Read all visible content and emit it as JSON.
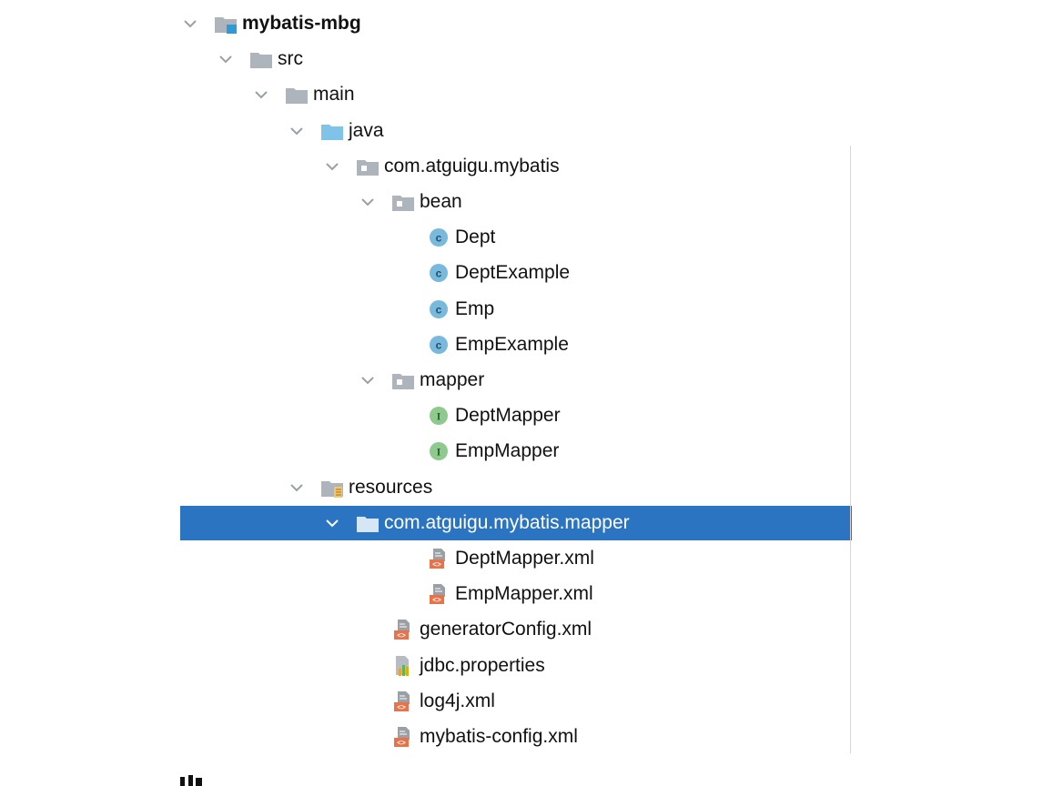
{
  "tree": [
    {
      "label": "mybatis-mbg",
      "icon": "module-folder-icon",
      "expanded": true,
      "depth": 0,
      "root": true
    },
    {
      "label": "src",
      "icon": "folder-icon",
      "expanded": true,
      "depth": 1
    },
    {
      "label": "main",
      "icon": "folder-icon",
      "expanded": true,
      "depth": 2
    },
    {
      "label": "java",
      "icon": "source-root-folder-icon",
      "expanded": true,
      "depth": 3
    },
    {
      "label": "com.atguigu.mybatis",
      "icon": "package-icon",
      "expanded": true,
      "depth": 4
    },
    {
      "label": "bean",
      "icon": "package-icon",
      "expanded": true,
      "depth": 5
    },
    {
      "label": "Dept",
      "icon": "class-icon",
      "depth": 6
    },
    {
      "label": "DeptExample",
      "icon": "class-icon",
      "depth": 6
    },
    {
      "label": "Emp",
      "icon": "class-icon",
      "depth": 6
    },
    {
      "label": "EmpExample",
      "icon": "class-icon",
      "depth": 6
    },
    {
      "label": "mapper",
      "icon": "package-icon",
      "expanded": true,
      "depth": 5
    },
    {
      "label": "DeptMapper",
      "icon": "interface-icon",
      "depth": 6
    },
    {
      "label": "EmpMapper",
      "icon": "interface-icon",
      "depth": 6
    },
    {
      "label": "resources",
      "icon": "resources-folder-icon",
      "expanded": true,
      "depth": 3
    },
    {
      "label": "com.atguigu.mybatis.mapper",
      "icon": "folder-icon",
      "expanded": true,
      "depth": 4,
      "selected": true
    },
    {
      "label": "DeptMapper.xml",
      "icon": "xml-file-icon",
      "depth": 6
    },
    {
      "label": "EmpMapper.xml",
      "icon": "xml-file-icon",
      "depth": 6
    },
    {
      "label": "generatorConfig.xml",
      "icon": "xml-file-icon",
      "depth": 5
    },
    {
      "label": "jdbc.properties",
      "icon": "properties-file-icon",
      "depth": 5
    },
    {
      "label": "log4j.xml",
      "icon": "xml-file-icon",
      "depth": 5
    },
    {
      "label": "mybatis-config.xml",
      "icon": "xml-file-icon",
      "depth": 5
    }
  ],
  "colors": {
    "selection": "#2a74c1",
    "folder": "#aeb4bb",
    "source_folder": "#7fc4e8",
    "class_icon": "#79b9dc",
    "interface_icon": "#8ec98e",
    "xml_icon": "#e8734a",
    "chevron": "#9aa0a6"
  }
}
